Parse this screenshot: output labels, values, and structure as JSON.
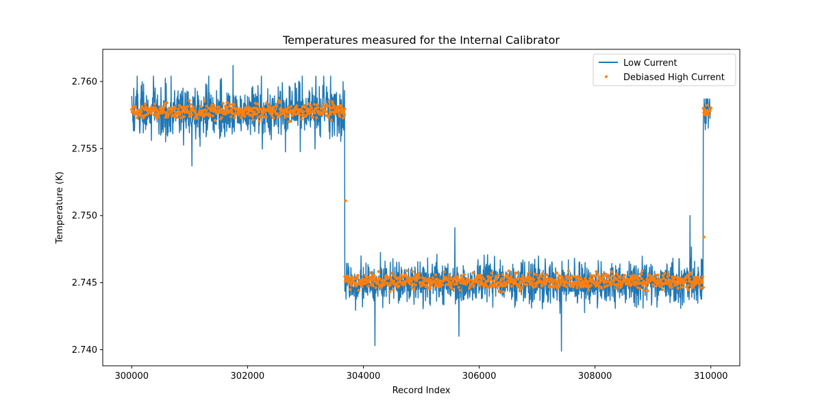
{
  "chart_data": {
    "type": "line",
    "title": "Temperatures measured for the Internal Calibrator",
    "xlabel": "Record Index",
    "ylabel": "Temperature (K)",
    "xlim": [
      299500,
      310500
    ],
    "ylim": [
      2.7388,
      2.7624
    ],
    "x_ticks": [
      300000,
      302000,
      304000,
      306000,
      308000,
      310000
    ],
    "x_tick_labels": [
      "300000",
      "302000",
      "304000",
      "306000",
      "308000",
      "310000"
    ],
    "y_ticks": [
      2.74,
      2.745,
      2.75,
      2.755,
      2.76
    ],
    "y_tick_labels": [
      "2.740",
      "2.745",
      "2.750",
      "2.755",
      "2.760"
    ],
    "grid": false,
    "legend_position": "upper right",
    "colors": {
      "low_current": "#1f77b4",
      "debiased_high_current": "#ff7f0e"
    },
    "series": [
      {
        "name": "Low Current",
        "kind": "line",
        "segments": [
          {
            "x_start": 300000,
            "x_end": 303680,
            "mean": 2.7578,
            "std": 0.0011,
            "min": 2.7537,
            "max": 2.7612
          },
          {
            "x_start": 303680,
            "x_end": 309870,
            "mean": 2.745,
            "std": 0.0009,
            "min": 2.7399,
            "max": 2.75
          },
          {
            "x_start": 309870,
            "x_end": 310000,
            "mean": 2.7578,
            "std": 0.0008,
            "min": 2.7546,
            "max": 2.7595
          }
        ],
        "notable_points": [
          {
            "x": 301750,
            "y": 2.7612
          },
          {
            "x": 301040,
            "y": 2.7537
          },
          {
            "x": 304200,
            "y": 2.7403
          },
          {
            "x": 305580,
            "y": 2.7491
          },
          {
            "x": 305650,
            "y": 2.741
          },
          {
            "x": 307420,
            "y": 2.7399
          },
          {
            "x": 309640,
            "y": 2.75
          }
        ]
      },
      {
        "name": "Debiased High Current",
        "kind": "scatter",
        "segments": [
          {
            "x_start": 300000,
            "x_end": 303680,
            "mean": 2.7578,
            "std": 0.00028
          },
          {
            "x_start": 303680,
            "x_end": 309870,
            "mean": 2.7451,
            "std": 0.00028
          },
          {
            "x_start": 309870,
            "x_end": 310000,
            "mean": 2.7578,
            "std": 0.0002
          }
        ],
        "notable_points": [
          {
            "x": 303690,
            "y": 2.7511
          },
          {
            "x": 309880,
            "y": 2.7484
          }
        ]
      }
    ]
  }
}
